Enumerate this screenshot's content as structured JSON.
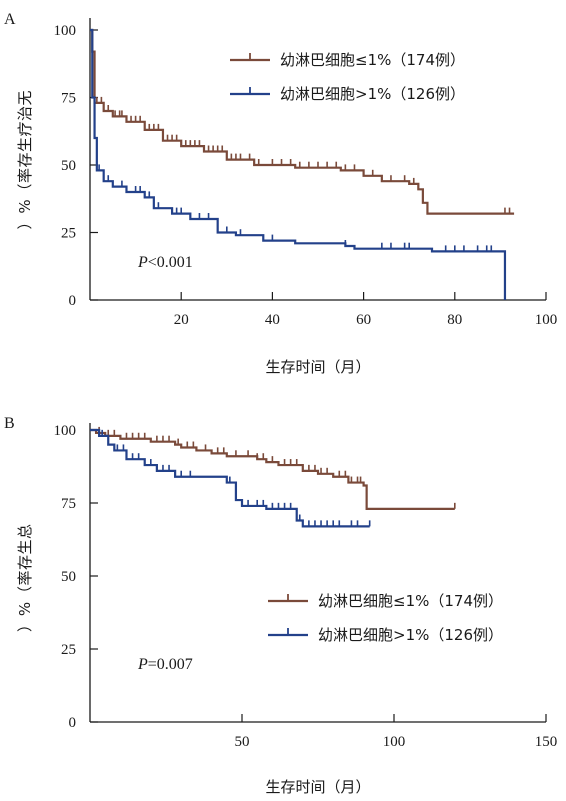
{
  "chart_data": [
    {
      "panel": "A",
      "type": "line",
      "xlabel": "生存时间（月）",
      "ylabel": "无治疗生存率（%）",
      "xlim": [
        0,
        100
      ],
      "ylim": [
        0,
        100
      ],
      "xticks": [
        20,
        40,
        60,
        80,
        100
      ],
      "yticks": [
        0,
        25,
        50,
        75,
        100
      ],
      "annotation": {
        "italic": "P",
        "rest": "<0.001"
      },
      "legend_position": "top-right",
      "series": [
        {
          "name": "幼淋巴细胞≤1%（174例）",
          "color": "#7a4a3a",
          "steps": [
            [
              0,
              100
            ],
            [
              0.5,
              92
            ],
            [
              1,
              73
            ],
            [
              3,
              70
            ],
            [
              5,
              68
            ],
            [
              8,
              66
            ],
            [
              12,
              63
            ],
            [
              16,
              59
            ],
            [
              20,
              57
            ],
            [
              25,
              55
            ],
            [
              30,
              52
            ],
            [
              36,
              50
            ],
            [
              45,
              49
            ],
            [
              55,
              48
            ],
            [
              60,
              46
            ],
            [
              64,
              44
            ],
            [
              70,
              43
            ],
            [
              72,
              41
            ],
            [
              73,
              36
            ],
            [
              74,
              32
            ],
            [
              93,
              32
            ]
          ],
          "censor": [
            1.5,
            2.5,
            4,
            5.5,
            6.5,
            7,
            9,
            10,
            11,
            13,
            14,
            15,
            17,
            18,
            19,
            21,
            22,
            23,
            24,
            26,
            27,
            28,
            29,
            31,
            32,
            33,
            35,
            37,
            40,
            42,
            44,
            46,
            48,
            50,
            52,
            54,
            56,
            58,
            62,
            66,
            69,
            71,
            91,
            92
          ]
        },
        {
          "name": "幼淋巴细胞>1%（126例）",
          "color": "#23418a",
          "steps": [
            [
              0,
              100
            ],
            [
              0.5,
              75
            ],
            [
              1,
              60
            ],
            [
              1.5,
              48
            ],
            [
              3,
              44
            ],
            [
              5,
              42
            ],
            [
              8,
              40
            ],
            [
              12,
              38
            ],
            [
              14,
              34
            ],
            [
              18,
              32
            ],
            [
              22,
              30
            ],
            [
              28,
              25
            ],
            [
              32,
              24
            ],
            [
              38,
              22
            ],
            [
              45,
              21
            ],
            [
              56,
              20
            ],
            [
              58,
              19
            ],
            [
              75,
              18
            ],
            [
              80,
              18
            ],
            [
              91,
              18
            ],
            [
              91,
              0
            ]
          ],
          "censor": [
            2,
            4,
            7,
            10,
            11,
            13,
            15,
            19,
            20,
            24,
            26,
            30,
            33,
            40,
            56,
            64,
            66,
            69,
            70,
            78,
            80,
            82,
            85,
            87,
            88
          ]
        }
      ]
    },
    {
      "panel": "B",
      "type": "line",
      "xlabel": "生存时间（月）",
      "ylabel": "总生存率（%）",
      "xlim": [
        0,
        150
      ],
      "ylim": [
        0,
        100
      ],
      "xticks": [
        50,
        100,
        150
      ],
      "yticks": [
        0,
        25,
        50,
        75,
        100
      ],
      "annotation": {
        "italic": "P",
        "rest": "=0.007"
      },
      "legend_position": "bottom-right",
      "series": [
        {
          "name": "幼淋巴细胞≤1%（174例）",
          "color": "#7a4a3a",
          "steps": [
            [
              0,
              100
            ],
            [
              2,
              99
            ],
            [
              5,
              98
            ],
            [
              10,
              97
            ],
            [
              20,
              96
            ],
            [
              28,
              95
            ],
            [
              30,
              94
            ],
            [
              35,
              93
            ],
            [
              40,
              92
            ],
            [
              45,
              91
            ],
            [
              50,
              91
            ],
            [
              55,
              90
            ],
            [
              58,
              89
            ],
            [
              62,
              88
            ],
            [
              70,
              86
            ],
            [
              75,
              85
            ],
            [
              80,
              84
            ],
            [
              85,
              82
            ],
            [
              90,
              81
            ],
            [
              91,
              73
            ],
            [
              120,
              73
            ]
          ],
          "censor": [
            3,
            6,
            8,
            12,
            14,
            16,
            18,
            22,
            24,
            26,
            29,
            32,
            34,
            38,
            42,
            44,
            48,
            52,
            55,
            57,
            60,
            64,
            66,
            68,
            72,
            74,
            76,
            78,
            82,
            84,
            86,
            88,
            89,
            120
          ]
        },
        {
          "name": "幼淋巴细胞>1%（126例）",
          "color": "#23418a",
          "steps": [
            [
              0,
              100
            ],
            [
              3,
              98
            ],
            [
              6,
              95
            ],
            [
              8,
              93
            ],
            [
              12,
              90
            ],
            [
              18,
              88
            ],
            [
              22,
              86
            ],
            [
              28,
              84
            ],
            [
              35,
              84
            ],
            [
              45,
              82
            ],
            [
              48,
              76
            ],
            [
              50,
              74
            ],
            [
              58,
              73
            ],
            [
              68,
              69
            ],
            [
              70,
              67
            ],
            [
              92,
              67
            ]
          ],
          "censor": [
            4,
            9,
            11,
            14,
            16,
            20,
            24,
            26,
            30,
            33,
            46,
            50,
            52,
            55,
            57,
            60,
            62,
            64,
            66,
            69,
            72,
            74,
            76,
            78,
            80,
            82,
            86,
            88,
            92
          ]
        }
      ]
    }
  ]
}
